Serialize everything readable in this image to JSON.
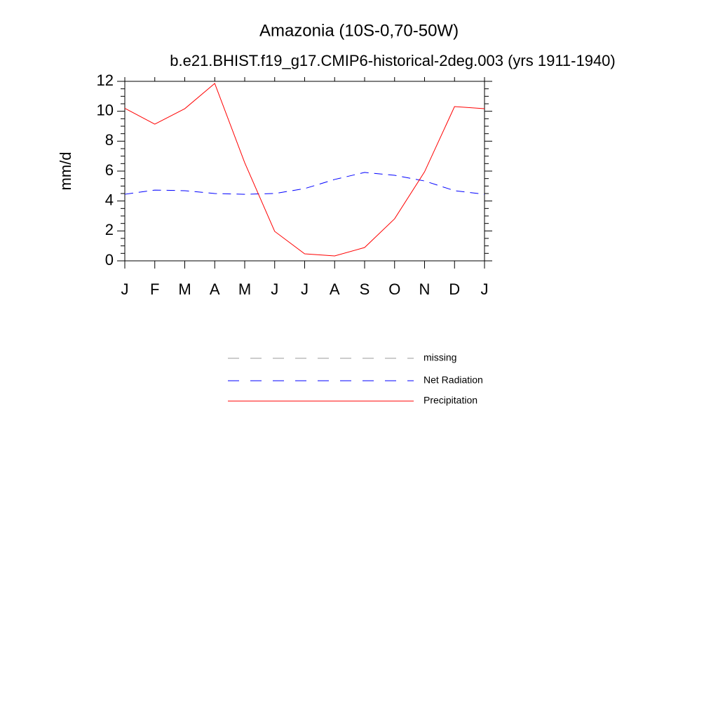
{
  "chart_data": {
    "type": "line",
    "title": "Amazonia (10S-0,70-50W)",
    "subtitle": "b.e21.BHIST.f19_g17.CMIP6-historical-2deg.003 (yrs 1911-1940)",
    "y_label": "mm/d",
    "categories": [
      "J",
      "F",
      "M",
      "A",
      "M",
      "J",
      "J",
      "A",
      "S",
      "O",
      "N",
      "D",
      "J"
    ],
    "series": [
      {
        "name": "missing",
        "color": "#999999",
        "dashed": true,
        "values": [
          null,
          null,
          null,
          null,
          null,
          null,
          null,
          null,
          null,
          null,
          null,
          null,
          null
        ]
      },
      {
        "name": "Net Radiation",
        "color": "#0000ff",
        "dashed": true,
        "values": [
          4.45,
          4.73,
          4.69,
          4.5,
          4.45,
          4.5,
          4.83,
          5.44,
          5.91,
          5.72,
          5.34,
          4.69,
          4.45
        ]
      },
      {
        "name": "Precipitation",
        "color": "#ff0000",
        "dashed": false,
        "values": [
          10.2,
          9.14,
          10.17,
          11.86,
          6.56,
          1.97,
          0.47,
          0.33,
          0.89,
          2.81,
          5.95,
          10.31,
          10.17
        ]
      }
    ],
    "ylim": [
      0,
      12
    ],
    "yticks": [
      0,
      2,
      4,
      6,
      8,
      10,
      12
    ]
  }
}
